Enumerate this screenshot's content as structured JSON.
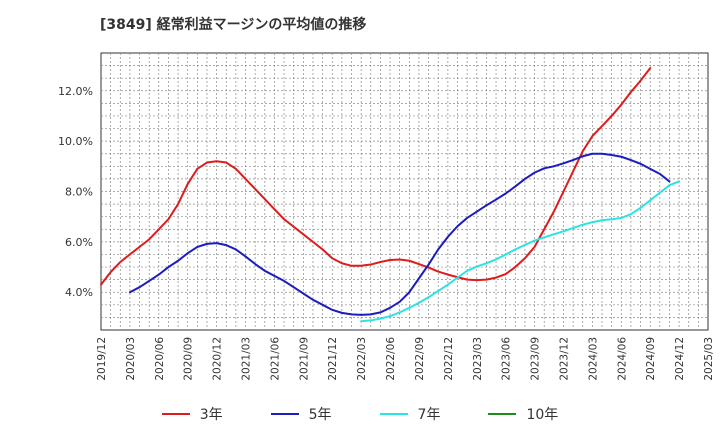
{
  "chart_data": {
    "type": "line",
    "title": "[3849]  経常利益マージンの平均値の推移",
    "xlabel": "",
    "ylabel": "",
    "x_ticks": [
      "2019/12",
      "2020/03",
      "2020/06",
      "2020/09",
      "2020/12",
      "2021/03",
      "2021/06",
      "2021/09",
      "2021/12",
      "2022/03",
      "2022/06",
      "2022/09",
      "2022/12",
      "2023/03",
      "2023/06",
      "2023/09",
      "2023/12",
      "2024/03",
      "2024/06",
      "2024/09",
      "2024/12",
      "2025/03"
    ],
    "y_ticks": [
      "4.0%",
      "6.0%",
      "8.0%",
      "10.0%",
      "12.0%"
    ],
    "y_tick_values": [
      4,
      6,
      8,
      10,
      12
    ],
    "ylim": [
      2.5,
      13.5
    ],
    "grid": true,
    "legend_position": "bottom",
    "series": [
      {
        "name": "3年",
        "color": "#dd1c1c",
        "points": [
          [
            "2019/12",
            4.3
          ],
          [
            "2020/01",
            4.8
          ],
          [
            "2020/02",
            5.2
          ],
          [
            "2020/03",
            5.5
          ],
          [
            "2020/04",
            5.8
          ],
          [
            "2020/05",
            6.1
          ],
          [
            "2020/06",
            6.5
          ],
          [
            "2020/07",
            6.9
          ],
          [
            "2020/08",
            7.5
          ],
          [
            "2020/09",
            8.3
          ],
          [
            "2020/10",
            8.9
          ],
          [
            "2020/11",
            9.15
          ],
          [
            "2020/12",
            9.2
          ],
          [
            "2021/01",
            9.15
          ],
          [
            "2021/02",
            8.9
          ],
          [
            "2021/03",
            8.5
          ],
          [
            "2021/04",
            8.1
          ],
          [
            "2021/05",
            7.7
          ],
          [
            "2021/06",
            7.3
          ],
          [
            "2021/07",
            6.9
          ],
          [
            "2021/08",
            6.6
          ],
          [
            "2021/09",
            6.3
          ],
          [
            "2021/10",
            6.0
          ],
          [
            "2021/11",
            5.7
          ],
          [
            "2021/12",
            5.35
          ],
          [
            "2022/01",
            5.15
          ],
          [
            "2022/02",
            5.05
          ],
          [
            "2022/03",
            5.05
          ],
          [
            "2022/04",
            5.1
          ],
          [
            "2022/05",
            5.2
          ],
          [
            "2022/06",
            5.28
          ],
          [
            "2022/07",
            5.3
          ],
          [
            "2022/08",
            5.25
          ],
          [
            "2022/09",
            5.12
          ],
          [
            "2022/10",
            4.98
          ],
          [
            "2022/11",
            4.82
          ],
          [
            "2022/12",
            4.7
          ],
          [
            "2023/01",
            4.6
          ],
          [
            "2023/02",
            4.5
          ],
          [
            "2023/03",
            4.48
          ],
          [
            "2023/04",
            4.5
          ],
          [
            "2023/05",
            4.58
          ],
          [
            "2023/06",
            4.72
          ],
          [
            "2023/07",
            5.0
          ],
          [
            "2023/08",
            5.35
          ],
          [
            "2023/09",
            5.8
          ],
          [
            "2023/10",
            6.5
          ],
          [
            "2023/11",
            7.2
          ],
          [
            "2023/12",
            8.0
          ],
          [
            "2024/01",
            8.8
          ],
          [
            "2024/02",
            9.6
          ],
          [
            "2024/03",
            10.2
          ],
          [
            "2024/04",
            10.6
          ],
          [
            "2024/05",
            11.0
          ],
          [
            "2024/06",
            11.45
          ],
          [
            "2024/07",
            11.95
          ],
          [
            "2024/08",
            12.4
          ],
          [
            "2024/09",
            12.9
          ]
        ]
      },
      {
        "name": "5年",
        "color": "#1c1cbf",
        "points": [
          [
            "2020/03",
            4.0
          ],
          [
            "2020/04",
            4.2
          ],
          [
            "2020/05",
            4.45
          ],
          [
            "2020/06",
            4.7
          ],
          [
            "2020/07",
            5.0
          ],
          [
            "2020/08",
            5.25
          ],
          [
            "2020/09",
            5.55
          ],
          [
            "2020/10",
            5.8
          ],
          [
            "2020/11",
            5.92
          ],
          [
            "2020/12",
            5.95
          ],
          [
            "2021/01",
            5.87
          ],
          [
            "2021/02",
            5.7
          ],
          [
            "2021/03",
            5.42
          ],
          [
            "2021/04",
            5.12
          ],
          [
            "2021/05",
            4.85
          ],
          [
            "2021/06",
            4.65
          ],
          [
            "2021/07",
            4.45
          ],
          [
            "2021/08",
            4.2
          ],
          [
            "2021/09",
            3.95
          ],
          [
            "2021/10",
            3.7
          ],
          [
            "2021/11",
            3.5
          ],
          [
            "2021/12",
            3.3
          ],
          [
            "2022/01",
            3.18
          ],
          [
            "2022/02",
            3.12
          ],
          [
            "2022/03",
            3.1
          ],
          [
            "2022/04",
            3.12
          ],
          [
            "2022/05",
            3.2
          ],
          [
            "2022/06",
            3.38
          ],
          [
            "2022/07",
            3.62
          ],
          [
            "2022/08",
            4.0
          ],
          [
            "2022/09",
            4.55
          ],
          [
            "2022/10",
            5.1
          ],
          [
            "2022/11",
            5.7
          ],
          [
            "2022/12",
            6.2
          ],
          [
            "2023/01",
            6.62
          ],
          [
            "2023/02",
            6.95
          ],
          [
            "2023/03",
            7.2
          ],
          [
            "2023/04",
            7.45
          ],
          [
            "2023/05",
            7.68
          ],
          [
            "2023/06",
            7.92
          ],
          [
            "2023/07",
            8.2
          ],
          [
            "2023/08",
            8.5
          ],
          [
            "2023/09",
            8.75
          ],
          [
            "2023/10",
            8.92
          ],
          [
            "2023/11",
            9.0
          ],
          [
            "2023/12",
            9.12
          ],
          [
            "2024/01",
            9.25
          ],
          [
            "2024/02",
            9.4
          ],
          [
            "2024/03",
            9.5
          ],
          [
            "2024/04",
            9.5
          ],
          [
            "2024/05",
            9.45
          ],
          [
            "2024/06",
            9.38
          ],
          [
            "2024/07",
            9.25
          ],
          [
            "2024/08",
            9.1
          ],
          [
            "2024/09",
            8.9
          ],
          [
            "2024/10",
            8.7
          ],
          [
            "2024/11",
            8.4
          ]
        ]
      },
      {
        "name": "7年",
        "color": "#2ce3e3",
        "points": [
          [
            "2022/03",
            2.85
          ],
          [
            "2022/04",
            2.88
          ],
          [
            "2022/05",
            2.95
          ],
          [
            "2022/06",
            3.05
          ],
          [
            "2022/07",
            3.2
          ],
          [
            "2022/08",
            3.38
          ],
          [
            "2022/09",
            3.58
          ],
          [
            "2022/10",
            3.8
          ],
          [
            "2022/11",
            4.05
          ],
          [
            "2022/12",
            4.3
          ],
          [
            "2023/01",
            4.58
          ],
          [
            "2023/02",
            4.85
          ],
          [
            "2023/03",
            5.02
          ],
          [
            "2023/04",
            5.15
          ],
          [
            "2023/05",
            5.3
          ],
          [
            "2023/06",
            5.5
          ],
          [
            "2023/07",
            5.7
          ],
          [
            "2023/08",
            5.88
          ],
          [
            "2023/09",
            6.05
          ],
          [
            "2023/10",
            6.18
          ],
          [
            "2023/11",
            6.3
          ],
          [
            "2023/12",
            6.42
          ],
          [
            "2024/01",
            6.55
          ],
          [
            "2024/02",
            6.68
          ],
          [
            "2024/03",
            6.78
          ],
          [
            "2024/04",
            6.86
          ],
          [
            "2024/05",
            6.9
          ],
          [
            "2024/06",
            6.95
          ],
          [
            "2024/07",
            7.1
          ],
          [
            "2024/08",
            7.35
          ],
          [
            "2024/09",
            7.65
          ],
          [
            "2024/10",
            7.95
          ],
          [
            "2024/11",
            8.25
          ],
          [
            "2024/12",
            8.4
          ]
        ]
      },
      {
        "name": "10年",
        "color": "#1e8c1e",
        "points": []
      }
    ]
  }
}
